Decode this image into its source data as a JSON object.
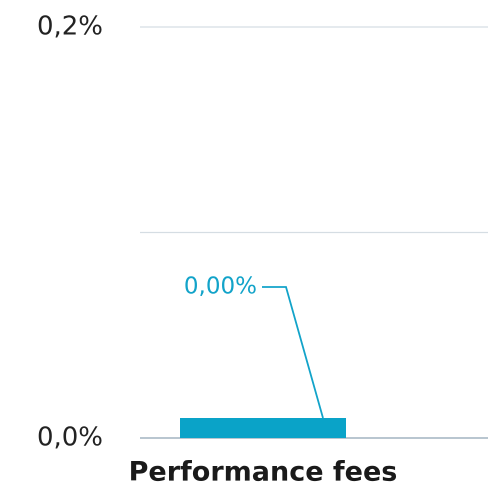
{
  "chart_data": {
    "type": "bar",
    "categories": [
      "Performance fees"
    ],
    "values": [
      0
    ],
    "value_labels": [
      "0,00%"
    ],
    "color": "#0aa3c8",
    "ylim": [
      0,
      0.2
    ],
    "yticks": [
      {
        "value": 0,
        "label": "0,0%"
      },
      {
        "value": 0.1,
        "label": null
      },
      {
        "value": 0.2,
        "label": "0,2%"
      }
    ],
    "grid": true
  }
}
